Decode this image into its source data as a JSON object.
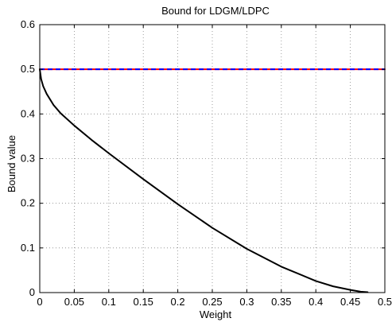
{
  "chart_data": {
    "type": "line",
    "title": "Bound for LDGM/LDPC",
    "xlabel": "Weight",
    "ylabel": "Bound value",
    "xlim": [
      0,
      0.5
    ],
    "ylim": [
      0,
      0.6
    ],
    "grid": true,
    "x_ticks": [
      0,
      0.05,
      0.1,
      0.15,
      0.2,
      0.25,
      0.3,
      0.35,
      0.4,
      0.45,
      0.5
    ],
    "x_tick_labels": [
      "0",
      "0.05",
      "0.1",
      "0.15",
      "0.2",
      "0.25",
      "0.3",
      "0.35",
      "0.4",
      "0.45",
      "0.5"
    ],
    "y_ticks": [
      0,
      0.1,
      0.2,
      0.3,
      0.4,
      0.5,
      0.6
    ],
    "y_tick_labels": [
      "0",
      "0.1",
      "0.2",
      "0.3",
      "0.4",
      "0.5",
      "0.6"
    ],
    "series": [
      {
        "color": "#ff0000",
        "style": "solid",
        "x": [
          0,
          0.5
        ],
        "y": [
          0.5,
          0.5
        ]
      },
      {
        "color": "#0000ff",
        "style": "dashed",
        "x": [
          0,
          0.5
        ],
        "y": [
          0.5,
          0.5
        ]
      },
      {
        "color": "#000000",
        "style": "solid",
        "x": [
          0,
          0.002,
          0.005,
          0.01,
          0.02,
          0.03,
          0.05,
          0.075,
          0.1,
          0.15,
          0.2,
          0.25,
          0.3,
          0.35,
          0.4,
          0.425,
          0.45,
          0.465,
          0.475
        ],
        "y": [
          0.5,
          0.478,
          0.462,
          0.445,
          0.42,
          0.402,
          0.374,
          0.342,
          0.312,
          0.254,
          0.198,
          0.145,
          0.098,
          0.058,
          0.026,
          0.014,
          0.006,
          0.002,
          0.001
        ]
      }
    ]
  }
}
